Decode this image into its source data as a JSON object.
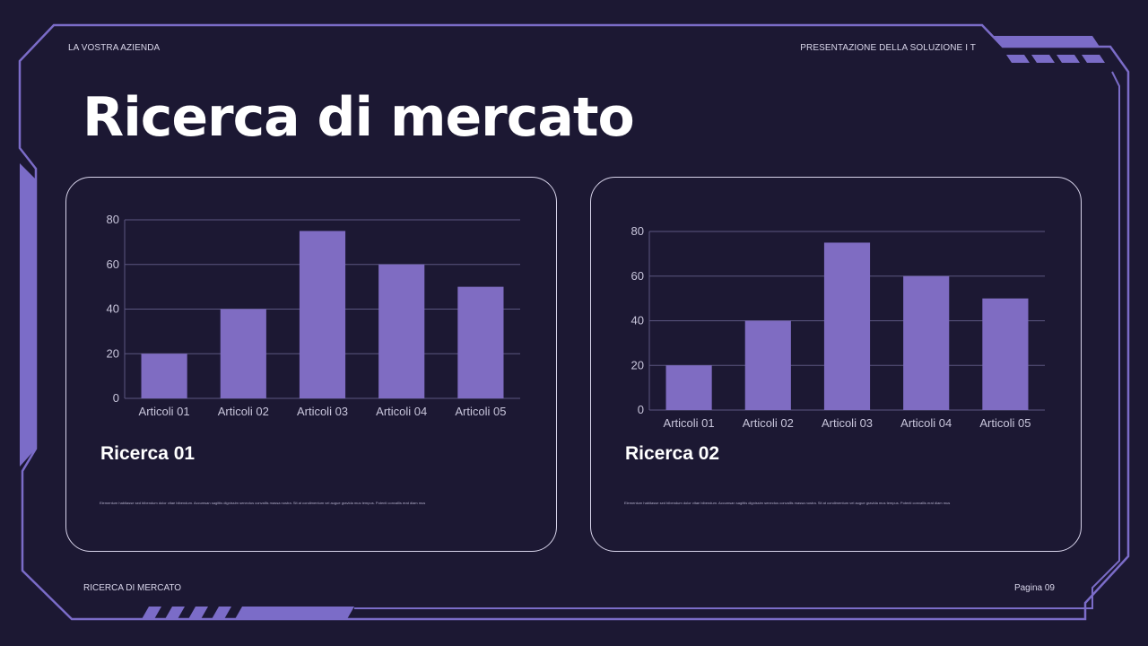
{
  "header": {
    "company": "LA VOSTRA AZIENDA",
    "presentation": "PRESENTAZIONE DELLA SOLUZIONE I T"
  },
  "title": "Ricerca di mercato",
  "colors": {
    "background": "#1c1833",
    "accent": "#7d6ec9",
    "bar": "#7f6cc2",
    "frame_line": "#7b6cc8"
  },
  "cards": [
    {
      "title": "Ricerca 01",
      "body": "Elementum habitasse sed bibendum dolor vitae bibendum. Accumsan sagittis dignissim senectus convallis massa nostra. Sit at condimentum vel augue gravida mus tempus. Potenti convallis erat diam mus"
    },
    {
      "title": "Ricerca 02",
      "body": "Elementum habitasse sed bibendum dolor vitae bibendum. Accumsan sagittis dignissim senectus convallis massa nostra. Sit at condimentum vel augue gravida mus tempus. Potenti convallis erat diam mus"
    }
  ],
  "chart_data": [
    {
      "type": "bar",
      "title": "",
      "categories": [
        "Articoli 01",
        "Articoli 02",
        "Articoli 03",
        "Articoli 04",
        "Articoli 05"
      ],
      "values": [
        20,
        40,
        75,
        60,
        50
      ],
      "yticks": [
        "0",
        "20",
        "40",
        "60",
        "80"
      ],
      "ylim": [
        0,
        80
      ],
      "grid": true,
      "legend": false
    },
    {
      "type": "bar",
      "title": "",
      "categories": [
        "Articoli 01",
        "Articoli 02",
        "Articoli 03",
        "Articoli 04",
        "Articoli 05"
      ],
      "values": [
        20,
        40,
        75,
        60,
        50
      ],
      "yticks": [
        "0",
        "20",
        "40",
        "60",
        "80"
      ],
      "ylim": [
        0,
        80
      ],
      "grid": true,
      "legend": false
    }
  ],
  "footer": {
    "left": "RICERCA DI MERCATO",
    "right": "Pagina 09"
  }
}
